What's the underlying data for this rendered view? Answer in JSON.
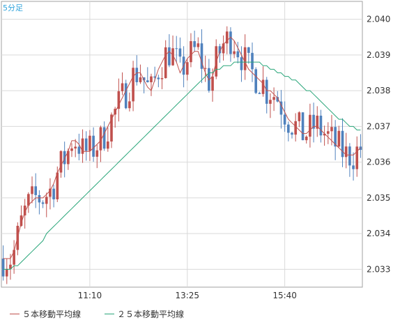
{
  "chart_data": {
    "type": "candlestick",
    "title": "5分足",
    "x_tick_labels": [
      "11:10",
      "13:25",
      "15:40"
    ],
    "x_tick_candle_index": [
      24,
      51,
      78
    ],
    "ylim": [
      2.0325,
      2.0405
    ],
    "y_ticks": [
      "2.033",
      "2.034",
      "2.035",
      "2.036",
      "2.037",
      "2.038",
      "2.039",
      "2.040"
    ],
    "grid": true,
    "legend_position": "bottom-left",
    "colors": {
      "up": "#c0504d",
      "down": "#4f81bd",
      "ma5": "#c0504d",
      "ma25": "#2aa67a",
      "grid": "#d9d9d9",
      "frame": "#a0a0a0",
      "title": "#2ea3dc"
    },
    "series": [
      {
        "name": "５本移動平均線",
        "values": [
          2.0333,
          2.0333,
          2.0333,
          2.0335,
          2.0339,
          2.0343,
          2.0346,
          2.0348,
          2.0349,
          2.035,
          2.035,
          2.035,
          2.0351,
          2.0352,
          2.0354,
          2.0357,
          2.0359,
          2.0361,
          2.0363,
          2.0366,
          2.0366,
          2.0365,
          2.0363,
          2.0363,
          2.0363,
          2.0364,
          2.0365,
          2.0366,
          2.0368,
          2.037,
          2.0372,
          2.0374,
          2.0376,
          2.0378,
          2.038,
          2.0382,
          2.0384,
          2.0385,
          2.0385,
          2.0383,
          2.0381,
          2.038,
          2.0383,
          2.0386,
          2.0388,
          2.039,
          2.0391,
          2.039,
          2.0388,
          2.0385,
          2.0387,
          2.0389,
          2.039,
          2.0391,
          2.0391,
          2.0388,
          2.0385,
          2.0383,
          2.0384,
          2.0388,
          2.0391,
          2.0393,
          2.0394,
          2.0395,
          2.0394,
          2.0392,
          2.039,
          2.0388,
          2.0386,
          2.0385,
          2.0384,
          2.0383,
          2.0382,
          2.038,
          2.038,
          2.0379,
          2.0378,
          2.0376,
          2.0374,
          2.0372,
          2.0371,
          2.037,
          2.0369,
          2.0368,
          2.0368,
          2.0369,
          2.037,
          2.037,
          2.0369,
          2.0368,
          2.0367,
          2.0366,
          2.0365,
          2.0364,
          2.0363,
          2.0362,
          2.0362,
          2.0362,
          2.0363,
          2.0364
        ]
      },
      {
        "name": "２５本移動平均線",
        "values": [
          2.033,
          2.033,
          2.033,
          2.0331,
          2.0331,
          2.0332,
          2.0333,
          2.0334,
          2.0335,
          2.0336,
          2.0337,
          2.0338,
          2.034,
          2.0341,
          2.0342,
          2.0343,
          2.0344,
          2.0345,
          2.0346,
          2.0347,
          2.0348,
          2.0349,
          2.035,
          2.0351,
          2.0352,
          2.0353,
          2.0354,
          2.0355,
          2.0356,
          2.0357,
          2.0358,
          2.0359,
          2.036,
          2.0361,
          2.0362,
          2.0363,
          2.0364,
          2.0365,
          2.0366,
          2.0367,
          2.0368,
          2.0369,
          2.037,
          2.0371,
          2.0372,
          2.0373,
          2.0374,
          2.0375,
          2.0376,
          2.0377,
          2.0378,
          2.0379,
          2.038,
          2.0381,
          2.0382,
          2.0383,
          2.0384,
          2.0385,
          2.0385,
          2.0386,
          2.0386,
          2.0387,
          2.0387,
          2.0387,
          2.0388,
          2.0388,
          2.0388,
          2.0388,
          2.0388,
          2.0388,
          2.0388,
          2.0388,
          2.0387,
          2.0387,
          2.0386,
          2.0386,
          2.0385,
          2.0385,
          2.0384,
          2.0384,
          2.0383,
          2.0383,
          2.0382,
          2.0381,
          2.038,
          2.038,
          2.0379,
          2.0378,
          2.0377,
          2.0376,
          2.0375,
          2.0374,
          2.0373,
          2.0372,
          2.0372,
          2.0371,
          2.037,
          2.037,
          2.0369,
          2.0369
        ]
      }
    ],
    "candles_count": 100
  },
  "legend": {
    "ma5_label": "５本移動平均線",
    "ma25_label": "２５本移動平均線"
  }
}
